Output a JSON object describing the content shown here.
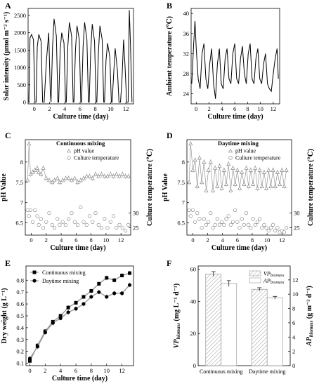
{
  "figure": {
    "panels": [
      "A",
      "B",
      "C",
      "D",
      "E",
      "F"
    ]
  },
  "chart_data": [
    {
      "id": "A",
      "type": "line",
      "title": "",
      "xlabel": "Culture time (day)",
      "ylabel": "Solar intensity (μmol m⁻² s⁻¹)",
      "xlim": [
        -0.8,
        13.0
      ],
      "ylim": [
        -50,
        2700
      ],
      "xticks": [
        0,
        2,
        4,
        6,
        8,
        10,
        12
      ],
      "yticks": [
        0,
        500,
        1000,
        1500,
        2000,
        2500
      ],
      "series": [
        {
          "x": [
            -0.7,
            -0.55,
            -0.35,
            -0.1,
            0.1,
            0.25,
            0.4,
            0.6,
            0.9,
            1.1,
            1.3,
            1.6,
            1.9,
            2.1,
            2.2,
            2.4,
            2.6,
            2.9,
            3.1,
            3.2,
            3.4,
            3.6,
            3.9,
            4.1,
            4.2,
            4.4,
            4.6,
            4.9,
            5.1,
            5.2,
            5.4,
            5.6,
            5.9,
            6.1,
            6.2,
            6.4,
            6.6,
            6.9,
            7.1,
            7.2,
            7.4,
            7.6,
            7.9,
            8.1,
            8.2,
            8.4,
            8.6,
            8.9,
            9.1,
            9.2,
            9.4,
            9.6,
            9.9,
            10.1,
            10.2,
            10.4,
            10.6,
            10.9,
            11.1,
            11.3,
            11.5,
            11.7,
            11.9,
            12.1,
            12.3,
            12.45,
            12.6,
            12.8
          ],
          "y": [
            0,
            1850,
            1950,
            1800,
            0,
            0,
            1600,
            1950,
            1750,
            0,
            0,
            1200,
            2000,
            300,
            0,
            1600,
            2400,
            1900,
            0,
            0,
            1500,
            2000,
            1700,
            0,
            0,
            1600,
            2300,
            1900,
            0,
            0,
            1500,
            2200,
            1800,
            0,
            0,
            1600,
            2300,
            1800,
            0,
            0,
            1500,
            2250,
            1750,
            0,
            0,
            1400,
            2200,
            1800,
            0,
            0,
            1200,
            1700,
            1300,
            0,
            0,
            800,
            1550,
            900,
            0,
            0,
            700,
            1800,
            1000,
            0,
            0,
            2650,
            1700,
            0
          ]
        }
      ]
    },
    {
      "id": "B",
      "type": "line",
      "title": "",
      "xlabel": "Culture time (day)",
      "ylabel": "Ambient temperature (℃)",
      "xlim": [
        -0.8,
        13.0
      ],
      "ylim": [
        22,
        41
      ],
      "xticks": [
        0,
        2,
        4,
        6,
        8,
        10,
        12
      ],
      "yticks": [
        24,
        28,
        32,
        36,
        40
      ],
      "series": [
        {
          "x": [
            -0.7,
            -0.4,
            -0.2,
            0.0,
            0.3,
            0.6,
            0.9,
            1.2,
            1.5,
            1.8,
            2.1,
            2.4,
            2.7,
            3.0,
            3.3,
            3.6,
            3.9,
            4.2,
            4.5,
            4.8,
            5.1,
            5.4,
            5.7,
            6.0,
            6.3,
            6.6,
            6.9,
            7.2,
            7.5,
            7.8,
            8.1,
            8.4,
            8.7,
            9.0,
            9.3,
            9.6,
            9.9,
            10.2,
            10.5,
            10.8,
            11.1,
            11.4,
            11.7,
            12.0,
            12.3,
            12.6,
            12.8
          ],
          "y": [
            26,
            34,
            38.5,
            33,
            27,
            25,
            32,
            34,
            27,
            25,
            30,
            33,
            26,
            23,
            30,
            33,
            26,
            25,
            31,
            33,
            27,
            26,
            32,
            34,
            27,
            26,
            31,
            33.5,
            28,
            26,
            32,
            34,
            27,
            26,
            31,
            33,
            27,
            26,
            30,
            32,
            26,
            25,
            24.5,
            28,
            31,
            33,
            27
          ]
        }
      ]
    },
    {
      "id": "C",
      "type": "scatter",
      "title": "Continuous mixing",
      "xlabel": "Culture time (day)",
      "ylabel": "pH Value",
      "ylabel_right": "Culture temperature (℃)",
      "xlim": [
        -0.8,
        13.3
      ],
      "ylim": [
        6.2,
        8.55
      ],
      "ylim_right": [
        22.5,
        55
      ],
      "xticks": [
        0,
        2,
        4,
        6,
        8,
        10,
        12
      ],
      "yticks": [
        6.5,
        7.0,
        7.5,
        8.0
      ],
      "yticks_right": [
        25,
        30
      ],
      "legend": [
        "pH value",
        "Culture temperature"
      ],
      "series": [
        {
          "name": "pH value",
          "marker": "triangle",
          "x": [
            -0.5,
            -0.3,
            -0.1,
            0.2,
            0.5,
            0.8,
            1.0,
            1.3,
            1.6,
            2.0,
            2.4,
            2.8,
            3.1,
            3.5,
            3.8,
            4.2,
            4.6,
            5.0,
            5.4,
            5.8,
            6.2,
            6.6,
            7.0,
            7.4,
            7.8,
            8.2,
            8.6,
            9.0,
            9.4,
            9.8,
            10.2,
            10.6,
            11.0,
            11.4,
            11.8,
            12.2,
            12.6,
            13.0
          ],
          "y": [
            7.55,
            8.45,
            7.7,
            7.75,
            7.8,
            7.85,
            7.75,
            7.7,
            7.85,
            7.6,
            7.55,
            7.5,
            7.55,
            7.6,
            7.5,
            7.55,
            7.6,
            7.6,
            7.55,
            7.6,
            7.5,
            7.55,
            7.6,
            7.65,
            7.65,
            7.6,
            7.7,
            7.65,
            7.7,
            7.65,
            7.65,
            7.7,
            7.65,
            7.7,
            7.65,
            7.7,
            7.65,
            7.65
          ]
        },
        {
          "name": "Culture temperature",
          "marker": "circle",
          "x": [
            -0.5,
            -0.3,
            -0.1,
            0.2,
            0.5,
            0.8,
            1.0,
            1.3,
            1.6,
            2.0,
            2.4,
            2.8,
            3.1,
            3.5,
            3.8,
            4.2,
            4.6,
            5.0,
            5.4,
            5.8,
            6.2,
            6.6,
            7.0,
            7.4,
            7.8,
            8.2,
            8.6,
            9.0,
            9.4,
            9.8,
            10.2,
            10.6,
            11.0,
            11.4,
            11.8,
            12.2,
            12.6,
            13.0
          ],
          "y": [
            31,
            29,
            31,
            27,
            31,
            29,
            26,
            28,
            25,
            27,
            30,
            26,
            25,
            28,
            26,
            27,
            26,
            28,
            30,
            27,
            26,
            32,
            27,
            26,
            29,
            27,
            30,
            26,
            25,
            28,
            25,
            27,
            29,
            25,
            26,
            25,
            24,
            26
          ]
        }
      ]
    },
    {
      "id": "D",
      "type": "scatter",
      "title": "Daytime mixing",
      "xlabel": "Culture time (day)",
      "ylabel": "pH Value",
      "ylabel_right": "Culture temperature (℃)",
      "xlim": [
        -0.8,
        13.3
      ],
      "ylim": [
        6.2,
        8.55
      ],
      "ylim_right": [
        22.5,
        55
      ],
      "xticks": [
        0,
        2,
        4,
        6,
        8,
        10,
        12
      ],
      "yticks": [
        6.5,
        7.0,
        7.5,
        8.0
      ],
      "yticks_right": [
        25,
        30
      ],
      "legend": [
        "pH value",
        "Culture temperature"
      ],
      "series": [
        {
          "name": "pH value",
          "marker": "triangle",
          "x": [
            -0.5,
            -0.3,
            0.0,
            0.3,
            0.6,
            0.9,
            1.2,
            1.5,
            1.8,
            2.1,
            2.4,
            2.7,
            3.0,
            3.3,
            3.6,
            3.9,
            4.2,
            4.5,
            4.8,
            5.1,
            5.4,
            5.7,
            6.0,
            6.3,
            6.6,
            6.9,
            7.2,
            7.5,
            7.8,
            8.1,
            8.4,
            8.7,
            9.0,
            9.3,
            9.6,
            9.9,
            10.2,
            10.5,
            10.8,
            11.1,
            11.4,
            11.7,
            12.0,
            12.3,
            12.6
          ],
          "y": [
            7.5,
            8.45,
            7.8,
            8.05,
            7.4,
            8.1,
            7.5,
            8.0,
            7.3,
            7.8,
            8.0,
            7.3,
            7.85,
            7.4,
            7.9,
            7.35,
            7.8,
            7.45,
            7.95,
            7.3,
            7.85,
            7.45,
            7.8,
            7.35,
            7.75,
            7.45,
            7.85,
            7.4,
            7.8,
            7.45,
            7.85,
            7.35,
            7.8,
            7.4,
            7.75,
            7.35,
            7.8,
            7.4,
            7.8,
            7.4,
            7.75,
            7.45,
            7.8,
            7.4,
            7.8
          ]
        },
        {
          "name": "Culture temperature",
          "marker": "circle",
          "x": [
            -0.5,
            -0.3,
            0.0,
            0.3,
            0.6,
            0.9,
            1.2,
            1.5,
            1.8,
            2.1,
            2.4,
            2.7,
            3.0,
            3.3,
            3.6,
            3.9,
            4.2,
            4.5,
            4.8,
            5.1,
            5.4,
            5.7,
            6.0,
            6.3,
            6.6,
            6.9,
            7.2,
            7.5,
            7.8,
            8.1,
            8.4,
            8.7,
            9.0,
            9.3,
            9.6,
            9.9,
            10.2,
            10.5,
            10.8,
            11.1,
            11.4,
            11.7,
            12.0,
            12.3,
            12.6
          ],
          "y": [
            31,
            29,
            31,
            27,
            30,
            28,
            25,
            28,
            26,
            27,
            30,
            25,
            26,
            28,
            26,
            27,
            26,
            28,
            29,
            26,
            27,
            31,
            27,
            25,
            28,
            26,
            30,
            26,
            25,
            28,
            26,
            27,
            28,
            25,
            26,
            25,
            24,
            25,
            26,
            24,
            25,
            23.5,
            24,
            23.5,
            25
          ]
        }
      ]
    },
    {
      "id": "E",
      "type": "line",
      "title": "",
      "xlabel": "Culture time (day)",
      "ylabel": "Dry weight (g L⁻¹)",
      "xlim": [
        -0.5,
        13.5
      ],
      "ylim": [
        0.08,
        0.92
      ],
      "xticks": [
        0,
        2,
        4,
        6,
        8,
        10,
        12
      ],
      "yticks": [
        0.1,
        0.2,
        0.3,
        0.4,
        0.5,
        0.6,
        0.7,
        0.8
      ],
      "legend": [
        "Continuous mixing",
        "Daytime mixing"
      ],
      "series": [
        {
          "name": "Continuous mixing",
          "marker": "square",
          "x": [
            0,
            1,
            2,
            3,
            4,
            5,
            6,
            7,
            8,
            9,
            10,
            11,
            12,
            13
          ],
          "y": [
            0.12,
            0.25,
            0.37,
            0.45,
            0.5,
            0.57,
            0.61,
            0.66,
            0.71,
            0.77,
            0.82,
            0.8,
            0.84,
            0.86
          ]
        },
        {
          "name": "Daytime mixing",
          "marker": "circle",
          "x": [
            0,
            1,
            2,
            3,
            4,
            5,
            6,
            7,
            8,
            9,
            10,
            11,
            12,
            13
          ],
          "y": [
            0.14,
            0.24,
            0.36,
            0.44,
            0.48,
            0.53,
            0.56,
            0.6,
            0.66,
            0.7,
            0.66,
            0.69,
            0.69,
            0.76
          ]
        }
      ]
    },
    {
      "id": "F",
      "type": "bar",
      "title": "",
      "xlabel": "",
      "ylabel": "VP",
      "ylabel_sub": "biomass",
      "ylabel_suffix": " (mg L⁻¹ d⁻¹)",
      "ylabel_right": "AP",
      "ylabel_right_sub": "biomass",
      "ylabel_right_suffix": " (g m⁻² d⁻¹)",
      "categories": [
        "Continuous mixing",
        "Daytime mixing"
      ],
      "ylim": [
        0,
        62
      ],
      "ylim_right": [
        0,
        13.95
      ],
      "yticks": [
        0,
        20,
        40,
        60
      ],
      "yticks_right": [
        0,
        2,
        4,
        6,
        8,
        10,
        12
      ],
      "legend": [
        {
          "main": "VP",
          "sub": "biomass"
        },
        {
          "main": "AP",
          "sub": "biomass"
        }
      ],
      "series": [
        {
          "name": "VP biomass",
          "pattern": "hatch",
          "values": [
            57.0,
            47.5
          ],
          "errors": [
            1.5,
            1.0
          ]
        },
        {
          "name": "AP biomass",
          "pattern": "plain",
          "values": [
            11.5,
            9.5
          ],
          "errors": [
            0.4,
            0.2
          ]
        }
      ]
    }
  ]
}
